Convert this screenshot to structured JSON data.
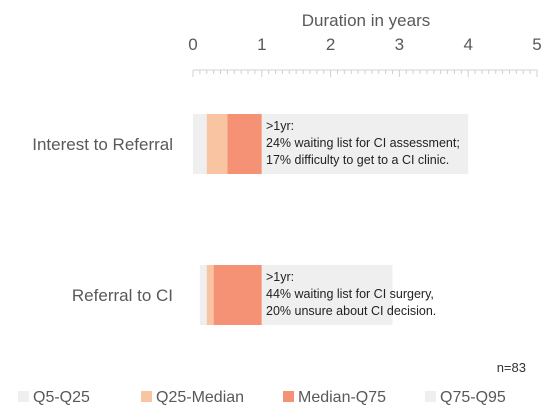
{
  "chart_data": {
    "type": "bar",
    "orientation": "horizontal",
    "stacked": true,
    "xlabel": "Duration in years",
    "xlim": [
      0,
      5
    ],
    "xticks": [
      "0",
      "1",
      "2",
      "3",
      "4",
      "5"
    ],
    "categories": [
      "Interest to Referral",
      "Referral to CI"
    ],
    "series": [
      {
        "name": "Q5-Q25",
        "color": "#efefef",
        "starts": [
          0.0,
          0.1
        ],
        "ends": [
          0.2,
          0.2
        ]
      },
      {
        "name": "Q25-Median",
        "color": "#f9c4a1",
        "starts": [
          0.2,
          0.2
        ],
        "ends": [
          0.5,
          0.3
        ]
      },
      {
        "name": "Median-Q75",
        "color": "#f59275",
        "starts": [
          0.5,
          0.3
        ],
        "ends": [
          1.0,
          1.0
        ]
      },
      {
        "name": "Q75-Q95",
        "color": "#efefef",
        "starts": [
          1.0,
          1.0
        ],
        "ends": [
          4.0,
          2.9
        ]
      }
    ],
    "annotations": [
      {
        "lines": [
          ">1yr:",
          "24% waiting list for CI assessment;",
          "17% difficulty to get to a CI clinic."
        ]
      },
      {
        "lines": [
          ">1yr:",
          "44% waiting list for CI surgery,",
          "20% unsure about CI decision."
        ]
      }
    ],
    "sample_size": "n=83",
    "grid": false,
    "legend_position": "bottom"
  }
}
